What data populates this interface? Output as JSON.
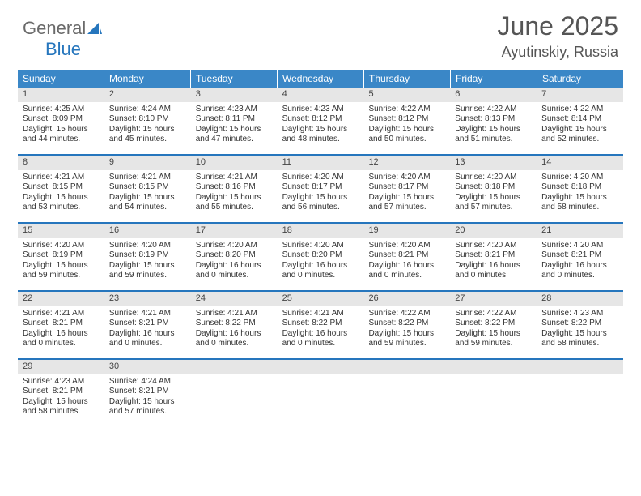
{
  "logo": {
    "text1": "General",
    "text2": "Blue"
  },
  "title": "June 2025",
  "location": "Ayutinskiy, Russia",
  "colors": {
    "header_bg": "#3a87c7",
    "header_text": "#ffffff",
    "daynum_bg": "#e6e6e6",
    "week_border": "#2676bd",
    "body_text": "#333333",
    "logo_gray": "#6a6a6a",
    "logo_blue": "#2676bd"
  },
  "day_headers": [
    "Sunday",
    "Monday",
    "Tuesday",
    "Wednesday",
    "Thursday",
    "Friday",
    "Saturday"
  ],
  "weeks": [
    [
      {
        "n": "1",
        "sr": "Sunrise: 4:25 AM",
        "ss": "Sunset: 8:09 PM",
        "dl": "Daylight: 15 hours and 44 minutes."
      },
      {
        "n": "2",
        "sr": "Sunrise: 4:24 AM",
        "ss": "Sunset: 8:10 PM",
        "dl": "Daylight: 15 hours and 45 minutes."
      },
      {
        "n": "3",
        "sr": "Sunrise: 4:23 AM",
        "ss": "Sunset: 8:11 PM",
        "dl": "Daylight: 15 hours and 47 minutes."
      },
      {
        "n": "4",
        "sr": "Sunrise: 4:23 AM",
        "ss": "Sunset: 8:12 PM",
        "dl": "Daylight: 15 hours and 48 minutes."
      },
      {
        "n": "5",
        "sr": "Sunrise: 4:22 AM",
        "ss": "Sunset: 8:12 PM",
        "dl": "Daylight: 15 hours and 50 minutes."
      },
      {
        "n": "6",
        "sr": "Sunrise: 4:22 AM",
        "ss": "Sunset: 8:13 PM",
        "dl": "Daylight: 15 hours and 51 minutes."
      },
      {
        "n": "7",
        "sr": "Sunrise: 4:22 AM",
        "ss": "Sunset: 8:14 PM",
        "dl": "Daylight: 15 hours and 52 minutes."
      }
    ],
    [
      {
        "n": "8",
        "sr": "Sunrise: 4:21 AM",
        "ss": "Sunset: 8:15 PM",
        "dl": "Daylight: 15 hours and 53 minutes."
      },
      {
        "n": "9",
        "sr": "Sunrise: 4:21 AM",
        "ss": "Sunset: 8:15 PM",
        "dl": "Daylight: 15 hours and 54 minutes."
      },
      {
        "n": "10",
        "sr": "Sunrise: 4:21 AM",
        "ss": "Sunset: 8:16 PM",
        "dl": "Daylight: 15 hours and 55 minutes."
      },
      {
        "n": "11",
        "sr": "Sunrise: 4:20 AM",
        "ss": "Sunset: 8:17 PM",
        "dl": "Daylight: 15 hours and 56 minutes."
      },
      {
        "n": "12",
        "sr": "Sunrise: 4:20 AM",
        "ss": "Sunset: 8:17 PM",
        "dl": "Daylight: 15 hours and 57 minutes."
      },
      {
        "n": "13",
        "sr": "Sunrise: 4:20 AM",
        "ss": "Sunset: 8:18 PM",
        "dl": "Daylight: 15 hours and 57 minutes."
      },
      {
        "n": "14",
        "sr": "Sunrise: 4:20 AM",
        "ss": "Sunset: 8:18 PM",
        "dl": "Daylight: 15 hours and 58 minutes."
      }
    ],
    [
      {
        "n": "15",
        "sr": "Sunrise: 4:20 AM",
        "ss": "Sunset: 8:19 PM",
        "dl": "Daylight: 15 hours and 59 minutes."
      },
      {
        "n": "16",
        "sr": "Sunrise: 4:20 AM",
        "ss": "Sunset: 8:19 PM",
        "dl": "Daylight: 15 hours and 59 minutes."
      },
      {
        "n": "17",
        "sr": "Sunrise: 4:20 AM",
        "ss": "Sunset: 8:20 PM",
        "dl": "Daylight: 16 hours and 0 minutes."
      },
      {
        "n": "18",
        "sr": "Sunrise: 4:20 AM",
        "ss": "Sunset: 8:20 PM",
        "dl": "Daylight: 16 hours and 0 minutes."
      },
      {
        "n": "19",
        "sr": "Sunrise: 4:20 AM",
        "ss": "Sunset: 8:21 PM",
        "dl": "Daylight: 16 hours and 0 minutes."
      },
      {
        "n": "20",
        "sr": "Sunrise: 4:20 AM",
        "ss": "Sunset: 8:21 PM",
        "dl": "Daylight: 16 hours and 0 minutes."
      },
      {
        "n": "21",
        "sr": "Sunrise: 4:20 AM",
        "ss": "Sunset: 8:21 PM",
        "dl": "Daylight: 16 hours and 0 minutes."
      }
    ],
    [
      {
        "n": "22",
        "sr": "Sunrise: 4:21 AM",
        "ss": "Sunset: 8:21 PM",
        "dl": "Daylight: 16 hours and 0 minutes."
      },
      {
        "n": "23",
        "sr": "Sunrise: 4:21 AM",
        "ss": "Sunset: 8:21 PM",
        "dl": "Daylight: 16 hours and 0 minutes."
      },
      {
        "n": "24",
        "sr": "Sunrise: 4:21 AM",
        "ss": "Sunset: 8:22 PM",
        "dl": "Daylight: 16 hours and 0 minutes."
      },
      {
        "n": "25",
        "sr": "Sunrise: 4:21 AM",
        "ss": "Sunset: 8:22 PM",
        "dl": "Daylight: 16 hours and 0 minutes."
      },
      {
        "n": "26",
        "sr": "Sunrise: 4:22 AM",
        "ss": "Sunset: 8:22 PM",
        "dl": "Daylight: 15 hours and 59 minutes."
      },
      {
        "n": "27",
        "sr": "Sunrise: 4:22 AM",
        "ss": "Sunset: 8:22 PM",
        "dl": "Daylight: 15 hours and 59 minutes."
      },
      {
        "n": "28",
        "sr": "Sunrise: 4:23 AM",
        "ss": "Sunset: 8:22 PM",
        "dl": "Daylight: 15 hours and 58 minutes."
      }
    ],
    [
      {
        "n": "29",
        "sr": "Sunrise: 4:23 AM",
        "ss": "Sunset: 8:21 PM",
        "dl": "Daylight: 15 hours and 58 minutes."
      },
      {
        "n": "30",
        "sr": "Sunrise: 4:24 AM",
        "ss": "Sunset: 8:21 PM",
        "dl": "Daylight: 15 hours and 57 minutes."
      },
      {
        "empty": true
      },
      {
        "empty": true
      },
      {
        "empty": true
      },
      {
        "empty": true
      },
      {
        "empty": true
      }
    ]
  ]
}
